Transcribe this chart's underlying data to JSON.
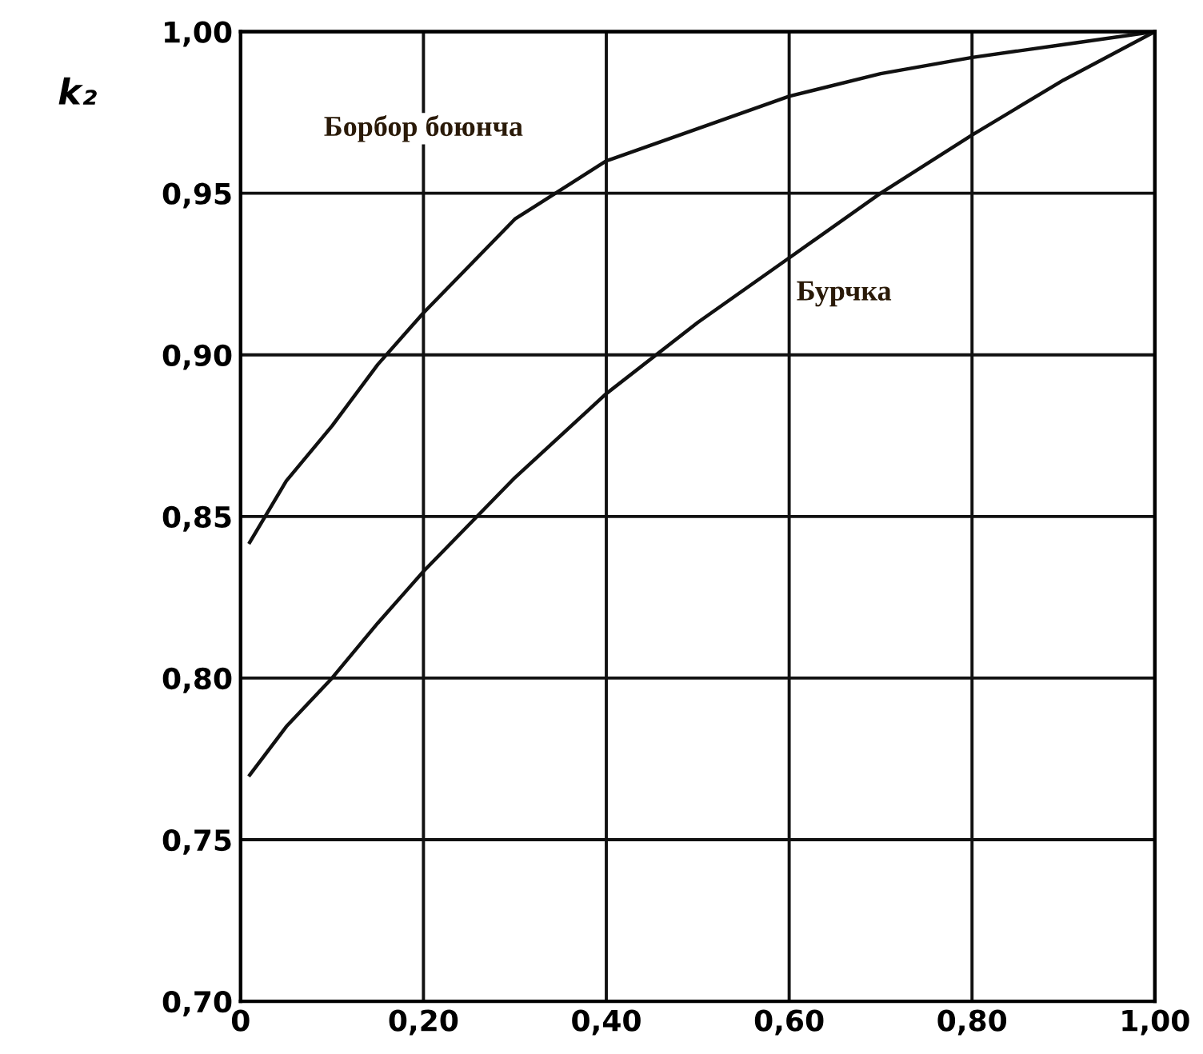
{
  "chart_data": {
    "type": "line",
    "ylabel": "k₂",
    "series": [
      {
        "name": "Борбор боюнча",
        "color": "#111111",
        "x": [
          0.01,
          0.05,
          0.1,
          0.15,
          0.2,
          0.3,
          0.4,
          0.5,
          0.6,
          0.7,
          0.8,
          0.9,
          1.0
        ],
        "values": [
          0.842,
          0.861,
          0.878,
          0.897,
          0.913,
          0.942,
          0.96,
          0.97,
          0.98,
          0.987,
          0.992,
          0.996,
          1.0
        ]
      },
      {
        "name": "Бурчка",
        "color": "#111111",
        "x": [
          0.01,
          0.05,
          0.1,
          0.15,
          0.2,
          0.3,
          0.4,
          0.5,
          0.6,
          0.7,
          0.8,
          0.9,
          1.0
        ],
        "values": [
          0.77,
          0.785,
          0.8,
          0.817,
          0.833,
          0.862,
          0.888,
          0.91,
          0.93,
          0.95,
          0.968,
          0.985,
          1.0
        ]
      }
    ],
    "xlim": [
      0,
      1.0
    ],
    "ylim": [
      0.7,
      1.0
    ],
    "xticks": [
      0,
      {
        "value": 0.2,
        "label": "0,20"
      },
      {
        "value": 0.4,
        "label": "0,40"
      },
      {
        "value": 0.6,
        "label": "0,60"
      },
      {
        "value": 0.8,
        "label": "0,80"
      },
      {
        "value": 1.0,
        "label": "1,00"
      }
    ],
    "yticks": [
      {
        "value": 0.7,
        "label": "0,70"
      },
      {
        "value": 0.75,
        "label": "0,75"
      },
      {
        "value": 0.8,
        "label": "0,80"
      },
      {
        "value": 0.85,
        "label": "0,85"
      },
      {
        "value": 0.9,
        "label": "0,90"
      },
      {
        "value": 0.95,
        "label": "0,95"
      },
      {
        "value": 1.0,
        "label": "1,00"
      }
    ],
    "grid": true,
    "marker": "none",
    "line_style": "solid",
    "legend": false
  }
}
